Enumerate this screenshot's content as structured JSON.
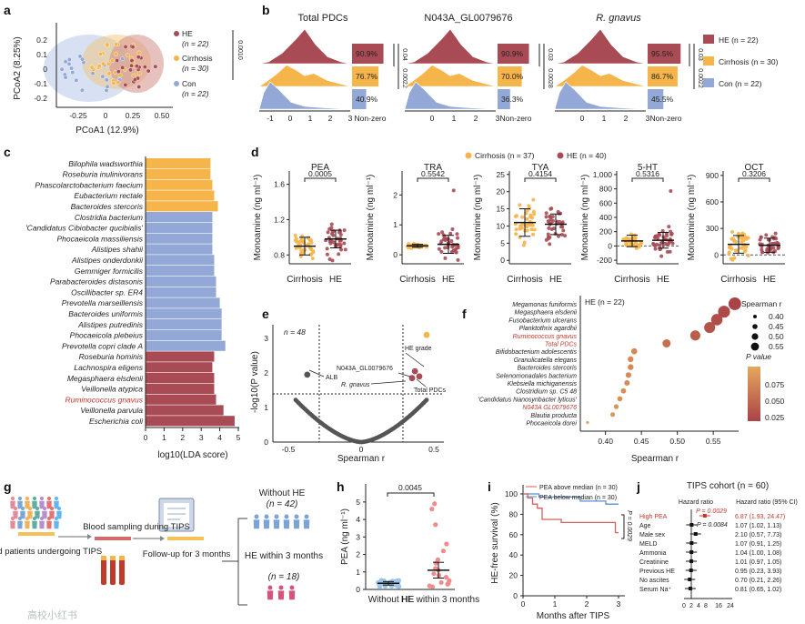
{
  "colors": {
    "he": "#a84b55",
    "cirrhosis": "#f5b54a",
    "con": "#93a8d6",
    "red_text": "#c0392b",
    "gradient_top": "#e6a75c",
    "gradient_bot": "#a94347"
  },
  "panel_a": {
    "label": "a",
    "xlabel": "PCoA1 (12.9%)",
    "ylabel": "PCoA2 (8.25%)",
    "xticks": [
      "-0.25",
      "0",
      "0.25",
      "0.50"
    ],
    "yticks": [
      "0.2",
      "0.1",
      "0",
      "-0.1",
      "-0.2"
    ],
    "legend": [
      {
        "name": "HE",
        "n": "(n = 22)"
      },
      {
        "name": "Cirrhosis",
        "n": "(n = 30)"
      },
      {
        "name": "Con",
        "n": "(n = 22)"
      }
    ],
    "pvalue": "0.0010"
  },
  "panel_b": {
    "label": "b",
    "plots": [
      {
        "title": "Total PDCs",
        "italic": false,
        "nonzero": [
          "90.9%",
          "76.7%",
          "40.9%"
        ],
        "p1": "0.04",
        "p2": "0.0022"
      },
      {
        "title": "N043A_GL0079676",
        "italic": false,
        "nonzero": [
          "90.9%",
          "70.0%",
          "36.3%"
        ],
        "p1": "0.03",
        "p2": "0.0028"
      },
      {
        "title": "R. gnavus",
        "italic": true,
        "nonzero": [
          "95.5%",
          "86.7%",
          "45.5%"
        ],
        "p1": "0.03",
        "p2": "0.0022"
      }
    ],
    "xticks1": [
      "-1",
      "0",
      "1",
      "2",
      "3"
    ],
    "xticks2": [
      "0",
      "1",
      "2",
      "3"
    ],
    "nonzero_label": "Non-zero",
    "legend": [
      "HE (n = 22)",
      "Cirrhosis (n = 30)",
      "Con (n = 22)"
    ]
  },
  "panel_c": {
    "label": "c",
    "xlabel": "log10(LDA score)",
    "xticks": [
      "0",
      "1",
      "2",
      "3",
      "4",
      "5"
    ],
    "bars": [
      {
        "name": "Bilophila wadsworthia",
        "value": 3.5,
        "group": "cirrhosis",
        "red": false
      },
      {
        "name": "Roseburia inulinivorans",
        "value": 3.5,
        "group": "cirrhosis",
        "red": false
      },
      {
        "name": "Phascolarctobacterium faecium",
        "value": 3.6,
        "group": "cirrhosis",
        "red": false
      },
      {
        "name": "Eubacterium rectale",
        "value": 3.7,
        "group": "cirrhosis",
        "red": false
      },
      {
        "name": "Bacteroides stercoris",
        "value": 3.9,
        "group": "cirrhosis",
        "red": false
      },
      {
        "name": "Clostridia bacterium",
        "value": 3.6,
        "group": "con",
        "red": false
      },
      {
        "name": "'Candidatus Cibiobacter qucibialis'",
        "value": 3.6,
        "group": "con",
        "red": false
      },
      {
        "name": "Phocaeicola massiliensis",
        "value": 3.6,
        "group": "con",
        "red": false
      },
      {
        "name": "Alistipes shahii",
        "value": 3.6,
        "group": "con",
        "red": false
      },
      {
        "name": "Alistipes onderdonkii",
        "value": 3.7,
        "group": "con",
        "red": false
      },
      {
        "name": "Gemmiger formicilis",
        "value": 3.7,
        "group": "con",
        "red": false
      },
      {
        "name": "Parabacteroides distasonis",
        "value": 3.8,
        "group": "con",
        "red": false
      },
      {
        "name": "Oscillibacter sp. ER4",
        "value": 3.8,
        "group": "con",
        "red": false
      },
      {
        "name": "Prevotella marseillensis",
        "value": 4.0,
        "group": "con",
        "red": false
      },
      {
        "name": "Bacteroides uniformis",
        "value": 4.1,
        "group": "con",
        "red": false
      },
      {
        "name": "Alistipes putredinis",
        "value": 4.1,
        "group": "con",
        "red": false
      },
      {
        "name": "Phocaeicola plebeius",
        "value": 4.1,
        "group": "con",
        "red": false
      },
      {
        "name": "Prevotella copri clade A",
        "value": 4.3,
        "group": "con",
        "red": false
      },
      {
        "name": "Roseburia hominis",
        "value": 3.7,
        "group": "he",
        "red": false
      },
      {
        "name": "Lachnospira eligens",
        "value": 3.6,
        "group": "he",
        "red": false
      },
      {
        "name": "Megasphaera elsdenii",
        "value": 3.7,
        "group": "he",
        "red": false
      },
      {
        "name": "Veillonella atypica",
        "value": 3.7,
        "group": "he",
        "red": false
      },
      {
        "name": "Ruminococcus gnavus",
        "value": 3.8,
        "group": "he",
        "red": true
      },
      {
        "name": "Veillonella parvula",
        "value": 4.2,
        "group": "he",
        "red": false
      },
      {
        "name": "Escherichia coli",
        "value": 4.8,
        "group": "he",
        "red": false
      }
    ]
  },
  "panel_d": {
    "label": "d",
    "ylabel": "Monoamine (ng ml⁻¹)",
    "legend": [
      "Cirrhosis (n = 37)",
      "HE (n = 40)"
    ],
    "groups": [
      "Cirrhosis",
      "HE"
    ],
    "plots": [
      {
        "title": "PEA",
        "p": "0.0005",
        "yticks": [
          "0.8",
          "1.2",
          "1.6"
        ],
        "ymin": 0.7,
        "ymax": 1.75,
        "means": [
          0.9,
          0.98
        ],
        "err": [
          0.1,
          0.1
        ],
        "spread": [
          0.12,
          0.14
        ]
      },
      {
        "title": "TRA",
        "p": "0.5542",
        "yticks": [
          "0",
          "1",
          "2"
        ],
        "ymin": -0.3,
        "ymax": 2.8,
        "means": [
          0.3,
          0.35
        ],
        "err": [
          0.05,
          0.3
        ],
        "spread": [
          0.05,
          0.35
        ]
      },
      {
        "title": "TYA",
        "p": "0.4154",
        "yticks": [
          "0",
          "5",
          "10",
          "15",
          "20",
          "25"
        ],
        "ymin": -1,
        "ymax": 26,
        "means": [
          11,
          10.5
        ],
        "err": [
          4,
          3
        ],
        "spread": [
          5,
          4
        ]
      },
      {
        "title": "5-HT",
        "p": "0.5316",
        "yticks": [
          "-200",
          "0",
          "200",
          "400",
          "600",
          "800",
          "1,000"
        ],
        "ymin": -250,
        "ymax": 1050,
        "means": [
          70,
          80
        ],
        "err": [
          80,
          110
        ],
        "spread": [
          90,
          140
        ]
      },
      {
        "title": "OCT",
        "p": "0.3206",
        "yticks": [
          "0",
          "300",
          "600",
          "900"
        ],
        "ymin": -100,
        "ymax": 950,
        "means": [
          120,
          110
        ],
        "err": [
          100,
          80
        ],
        "spread": [
          130,
          110
        ]
      }
    ]
  },
  "panel_e": {
    "label": "e",
    "n": "n = 48",
    "xlabel": "Spearman r",
    "ylabel": "-log10(P value)",
    "xticks": [
      "-0.5",
      "0",
      "0.5"
    ],
    "yticks": [
      "0",
      "1",
      "2",
      "3"
    ],
    "points": [
      {
        "name": "HE grade",
        "r": 0.45,
        "p": 3.1,
        "color": "#f5b54a"
      },
      {
        "name": "N043A_GL0079676",
        "r": 0.37,
        "p": 2.05,
        "color": "#a84b55"
      },
      {
        "name": "Total PDCs",
        "r": 0.4,
        "p": 1.9,
        "color": "#a84b55"
      },
      {
        "name": "R. gnavus",
        "r": 0.35,
        "p": 1.85,
        "color": "#a84b55"
      },
      {
        "name": "ALB",
        "r": -0.37,
        "p": 1.95,
        "color": "#555"
      }
    ],
    "labels": {
      "he_grade": "HE grade",
      "n043": "N043A_GL0079676",
      "rg": "R. gnavus",
      "total": "Total PDCs",
      "alb": "ALB"
    }
  },
  "panel_f": {
    "label": "f",
    "xlabel": "Spearman r",
    "title": "HE (n = 22)",
    "xticks": [
      "0.40",
      "0.45",
      "0.50",
      "0.55"
    ],
    "size_legend_title": "Spearman r",
    "size_legend": [
      "0.40",
      "0.45",
      "0.50",
      "0.55"
    ],
    "color_legend_title": "P value",
    "color_ticks": [
      "0.075",
      "0.050",
      "0.025"
    ],
    "rows": [
      {
        "name": "Megamonas funiformis",
        "r": 0.58,
        "red": false
      },
      {
        "name": "Megasphaera elsdenii",
        "r": 0.565,
        "red": false
      },
      {
        "name": "Fusobacterium ulcerans",
        "r": 0.555,
        "red": false
      },
      {
        "name": "Planktothrix agardhii",
        "r": 0.545,
        "red": false
      },
      {
        "name": "Ruminococcus gnavus",
        "r": 0.525,
        "red": true
      },
      {
        "name": "Total PDCs",
        "r": 0.485,
        "red": true
      },
      {
        "name": "Bifidobacterium adolescentis",
        "r": 0.44,
        "red": false
      },
      {
        "name": "Granulicatella elegans",
        "r": 0.435,
        "red": false
      },
      {
        "name": "Bacteroides stercoris",
        "r": 0.435,
        "red": false
      },
      {
        "name": "Selenomonadales bacterium",
        "r": 0.432,
        "red": false
      },
      {
        "name": "Klebsiella michiganensis",
        "r": 0.43,
        "red": false
      },
      {
        "name": "Clostridium sp. C5 48",
        "r": 0.425,
        "red": false
      },
      {
        "name": "'Candidatus Nanosynbacter lyticus'",
        "r": 0.42,
        "red": false
      },
      {
        "name": "N043A GL0079676",
        "r": 0.415,
        "red": true
      },
      {
        "name": "Blautia producta",
        "r": 0.41,
        "red": false
      },
      {
        "name": "Phocaeicola dorei",
        "r": 0.375,
        "red": false
      }
    ]
  },
  "panel_g": {
    "label": "g",
    "enrolled": "Enrolled patients undergoing TIPS",
    "blood": "Blood sampling during TIPS",
    "follow": "Follow-up for 3 months",
    "without_he": "Without HE",
    "without_n": "(n = 42)",
    "with_he": "HE within 3 months",
    "with_n": "(n = 18)"
  },
  "panel_h": {
    "label": "h",
    "ylabel": "PEA (ng ml⁻¹)",
    "p": "0.0045",
    "yticks": [
      "0",
      "1",
      "2",
      "3",
      "4",
      "5"
    ],
    "groups": [
      "Without HE",
      "HE within 3 months"
    ],
    "means": [
      0.35,
      1.1
    ],
    "err": [
      0.1,
      0.45
    ]
  },
  "panel_i": {
    "label": "i",
    "ylabel": "HE-free survival (%)",
    "xlabel": "Months after TIPS",
    "legend": [
      "PEA above median (n = 30)",
      "PEA below median (n = 30)"
    ],
    "p": "P = 0.0029",
    "yticks": [
      "0",
      "20",
      "40",
      "60",
      "80",
      "100"
    ],
    "xticks": [
      "0",
      "1",
      "2",
      "3"
    ],
    "above": [
      [
        0,
        100
      ],
      [
        0.15,
        96
      ],
      [
        0.3,
        90
      ],
      [
        0.45,
        86
      ],
      [
        0.6,
        75
      ],
      [
        1.2,
        72
      ],
      [
        2.9,
        62
      ],
      [
        3,
        62
      ]
    ],
    "below": [
      [
        0,
        100
      ],
      [
        0.5,
        97
      ],
      [
        1.8,
        93
      ],
      [
        2.6,
        90
      ],
      [
        3,
        90
      ]
    ]
  },
  "panel_j": {
    "label": "j",
    "title": "TIPS cohort (n = 60)",
    "col1": "Hazard ratio",
    "col2": "Hazard ratio (95% CI)",
    "p1": "P = 0.0029",
    "p2": "P = 0.0084",
    "xticks": [
      "0",
      "2",
      "4",
      "8",
      "16",
      "24"
    ],
    "rows": [
      {
        "name": "High PEA",
        "hr": "6.87 (1.93, 24.47)",
        "red": true,
        "est": 6.87
      },
      {
        "name": "Age",
        "hr": "1.07 (1.02, 1.13)",
        "red": false,
        "est": 1.07
      },
      {
        "name": "Male sex",
        "hr": "2.10 (0.57, 7.73)",
        "red": false,
        "est": 2.1
      },
      {
        "name": "MELD",
        "hr": "1.07 (0.91, 1.25)",
        "red": false,
        "est": 1.07
      },
      {
        "name": "Ammonia",
        "hr": "1.04 (1.00, 1.08)",
        "red": false,
        "est": 1.04
      },
      {
        "name": "Creatinine",
        "hr": "1.01 (0.97, 1.05)",
        "red": false,
        "est": 1.01
      },
      {
        "name": "Previous HE",
        "hr": "0.95 (0.23, 3.93)",
        "red": false,
        "est": 0.95
      },
      {
        "name": "No ascites",
        "hr": "0.70 (0.21, 2.26)",
        "red": false,
        "est": 0.7
      },
      {
        "name": "Serum Na⁺",
        "hr": "0.81 (0.65, 1.02)",
        "red": false,
        "est": 0.81
      }
    ]
  },
  "watermark": "高校小红书"
}
